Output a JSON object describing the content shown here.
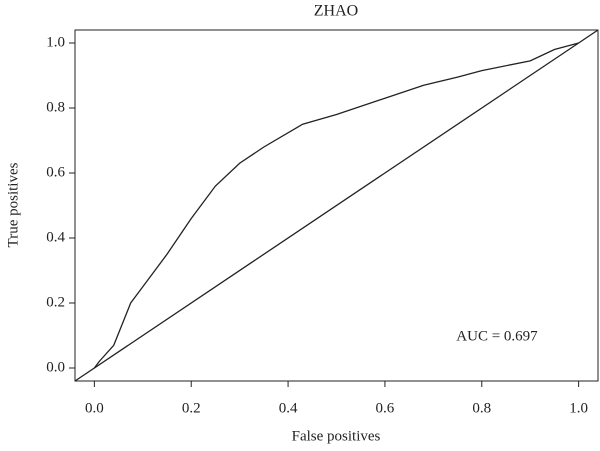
{
  "chart_data": {
    "type": "line",
    "title": "ZHAO",
    "x_label": "False positives",
    "y_label": "True positives",
    "annotation": "AUC = 0.697",
    "series": [
      {
        "color": "#222222",
        "x": [
          0,
          0.01,
          0.04,
          0.075,
          0.1,
          0.15,
          0.2,
          0.25,
          0.3,
          0.35,
          0.43,
          0.5,
          0.6,
          0.68,
          0.75,
          0.8,
          0.9,
          0.95,
          1
        ],
        "values": [
          0,
          0.02,
          0.07,
          0.2,
          0.25,
          0.35,
          0.46,
          0.56,
          0.63,
          0.68,
          0.75,
          0.78,
          0.83,
          0.87,
          0.895,
          0.915,
          0.945,
          0.98,
          1
        ]
      },
      {
        "color": "#222222",
        "x": [
          -0.04,
          1.04
        ],
        "values": [
          -0.04,
          1.04
        ]
      }
    ],
    "xlim": [
      -0.04,
      1.04
    ],
    "ylim": [
      -0.04,
      1.04
    ],
    "xticks": [
      {
        "value": 0,
        "label": "0.0"
      },
      0.2,
      0.4,
      0.6,
      0.8,
      {
        "value": 1,
        "label": "1.0"
      }
    ],
    "yticks": [
      {
        "value": 0,
        "label": "0.0"
      },
      0.2,
      0.4,
      0.6,
      0.8,
      {
        "value": 1,
        "label": "1.0"
      }
    ]
  }
}
